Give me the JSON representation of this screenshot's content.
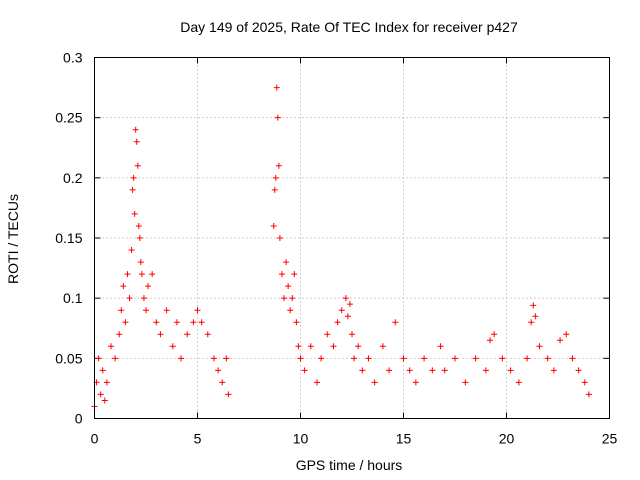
{
  "chart_data": {
    "type": "scatter",
    "title": "Day 149 of 2025, Rate Of TEC Index for receiver p427",
    "xlabel": "GPS time / hours",
    "ylabel": "ROTI / TECUs",
    "xlim": [
      0,
      25
    ],
    "ylim": [
      0,
      0.3
    ],
    "xticks": [
      0,
      5,
      10,
      15,
      20,
      25
    ],
    "xtick_labels": [
      "0",
      "5",
      "10",
      "15",
      "20",
      "25"
    ],
    "yticks": [
      0,
      0.05,
      0.1,
      0.15,
      0.2,
      0.25,
      0.3
    ],
    "ytick_labels": [
      "0",
      "0.05",
      "0.1",
      "0.15",
      "0.2",
      "0.25",
      "0.3"
    ],
    "grid": true,
    "marker": "+",
    "color": "#ff0000",
    "series": [
      {
        "name": "ROTI",
        "x": [
          0.0,
          0.1,
          0.2,
          0.3,
          0.4,
          0.5,
          0.6,
          0.8,
          1.0,
          1.2,
          1.3,
          1.4,
          1.5,
          1.6,
          1.7,
          1.8,
          1.85,
          1.9,
          1.95,
          2.0,
          2.05,
          2.1,
          2.15,
          2.2,
          2.25,
          2.3,
          2.4,
          2.5,
          2.6,
          2.8,
          3.0,
          3.2,
          3.5,
          3.8,
          4.0,
          4.2,
          4.5,
          4.8,
          5.0,
          5.2,
          5.5,
          5.8,
          6.0,
          6.2,
          6.4,
          6.5,
          8.7,
          8.75,
          8.8,
          8.85,
          8.9,
          8.95,
          9.0,
          9.1,
          9.2,
          9.3,
          9.4,
          9.5,
          9.6,
          9.7,
          9.8,
          9.9,
          10.0,
          10.2,
          10.5,
          10.8,
          11.0,
          11.3,
          11.6,
          11.8,
          12.0,
          12.2,
          12.3,
          12.4,
          12.5,
          12.6,
          12.8,
          13.0,
          13.3,
          13.6,
          14.0,
          14.3,
          14.6,
          15.0,
          15.3,
          15.6,
          16.0,
          16.4,
          16.8,
          17.0,
          17.5,
          18.0,
          18.5,
          19.0,
          19.2,
          19.4,
          19.8,
          20.2,
          20.6,
          21.0,
          21.2,
          21.3,
          21.4,
          21.6,
          22.0,
          22.3,
          22.6,
          22.9,
          23.2,
          23.5,
          23.8,
          24.0
        ],
        "y": [
          0.01,
          0.03,
          0.05,
          0.02,
          0.04,
          0.015,
          0.03,
          0.06,
          0.05,
          0.07,
          0.09,
          0.11,
          0.08,
          0.12,
          0.1,
          0.14,
          0.19,
          0.2,
          0.17,
          0.24,
          0.23,
          0.21,
          0.16,
          0.15,
          0.13,
          0.12,
          0.1,
          0.09,
          0.11,
          0.12,
          0.08,
          0.07,
          0.09,
          0.06,
          0.08,
          0.05,
          0.07,
          0.08,
          0.09,
          0.08,
          0.07,
          0.05,
          0.04,
          0.03,
          0.05,
          0.02,
          0.16,
          0.19,
          0.2,
          0.275,
          0.25,
          0.21,
          0.15,
          0.12,
          0.1,
          0.13,
          0.11,
          0.09,
          0.1,
          0.12,
          0.08,
          0.06,
          0.05,
          0.04,
          0.06,
          0.03,
          0.05,
          0.07,
          0.06,
          0.08,
          0.09,
          0.1,
          0.085,
          0.095,
          0.07,
          0.05,
          0.06,
          0.04,
          0.05,
          0.03,
          0.06,
          0.04,
          0.08,
          0.05,
          0.04,
          0.03,
          0.05,
          0.04,
          0.06,
          0.04,
          0.05,
          0.03,
          0.05,
          0.04,
          0.065,
          0.07,
          0.05,
          0.04,
          0.03,
          0.05,
          0.08,
          0.094,
          0.085,
          0.06,
          0.05,
          0.04,
          0.065,
          0.07,
          0.05,
          0.04,
          0.03,
          0.02
        ]
      }
    ]
  }
}
